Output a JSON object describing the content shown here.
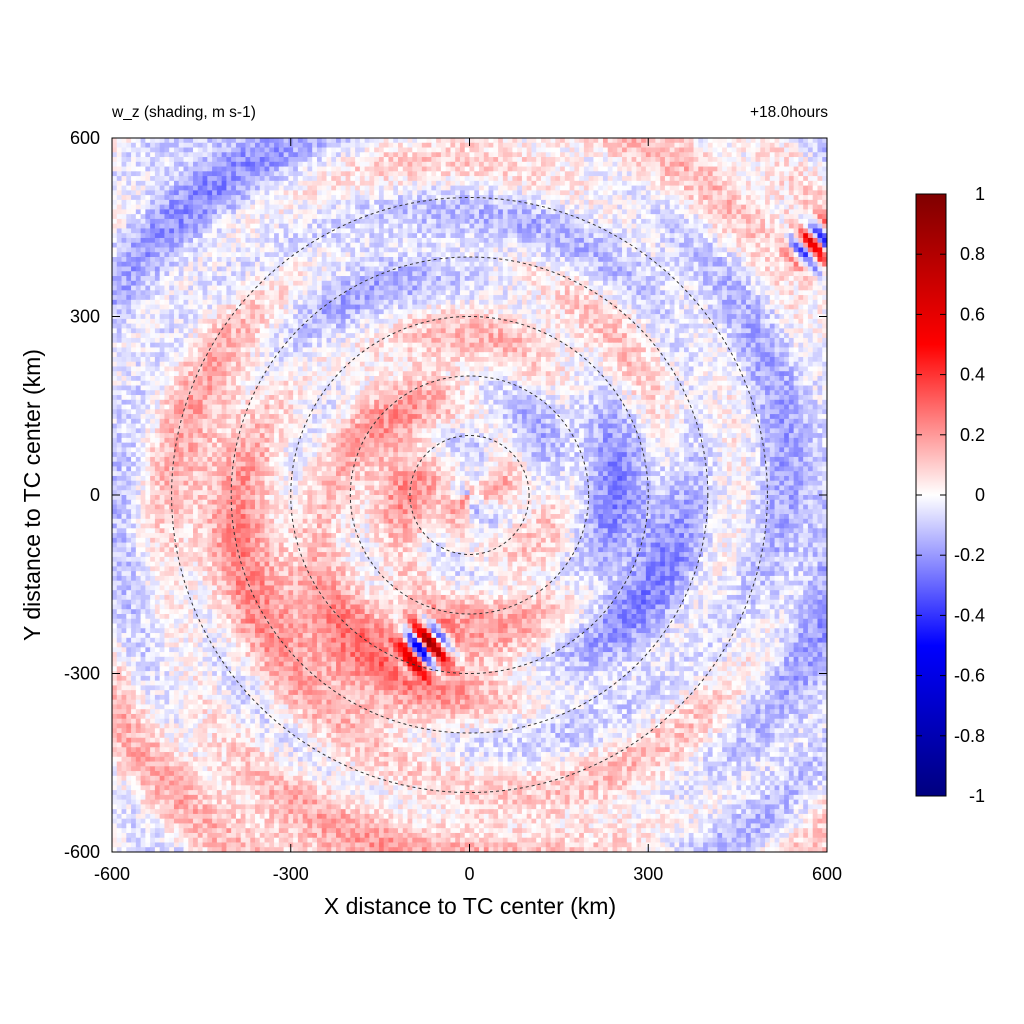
{
  "chart_data": {
    "type": "heatmap",
    "title_left": "w_z (shading, m s-1)",
    "title_right": "+18.0hours",
    "xlabel": "X distance to TC center (km)",
    "ylabel": "Y distance to TC center (km)",
    "xlim": [
      -600,
      600
    ],
    "ylim": [
      -600,
      600
    ],
    "x_ticks": [
      -600,
      -300,
      0,
      300,
      600
    ],
    "y_ticks": [
      -600,
      -300,
      0,
      300,
      600
    ],
    "x_tick_labels": [
      "-600",
      "-300",
      "0",
      "300",
      "600"
    ],
    "y_tick_labels": [
      "-600",
      "-300",
      "0",
      "300",
      "600"
    ],
    "grid": false,
    "colorbar": {
      "min": -1,
      "max": 1,
      "ticks": [
        1,
        0.8,
        0.6,
        0.4,
        0.2,
        0,
        -0.2,
        -0.4,
        -0.6,
        -0.8,
        -1
      ],
      "tick_labels": [
        "1",
        "0.8",
        "0.6",
        "0.4",
        "0.2",
        "0",
        "-0.2",
        "-0.4",
        "-0.6",
        "-0.8",
        "-1"
      ],
      "colors": [
        "#00007f",
        "#0000ff",
        "#ffffff",
        "#ff0000",
        "#7f0000"
      ]
    },
    "reference_circles_km": [
      100,
      200,
      300,
      400,
      500
    ],
    "field": {
      "description_hidden": false,
      "features": [
        {
          "kind": "negative-band",
          "x": -330,
          "y": 470,
          "value": -0.12
        },
        {
          "kind": "positive-band",
          "x": -280,
          "y": 80,
          "value": 0.12
        },
        {
          "kind": "negative-spiral-band",
          "x": 380,
          "y": -80,
          "value": -0.15
        },
        {
          "kind": "positive-spiral-band",
          "x": -150,
          "y": -330,
          "value": 0.15
        },
        {
          "kind": "convective-cluster",
          "x": -75,
          "y": -255,
          "value": 0.85
        },
        {
          "kind": "convective-cluster",
          "x": 580,
          "y": 420,
          "value": 0.6
        }
      ]
    }
  }
}
